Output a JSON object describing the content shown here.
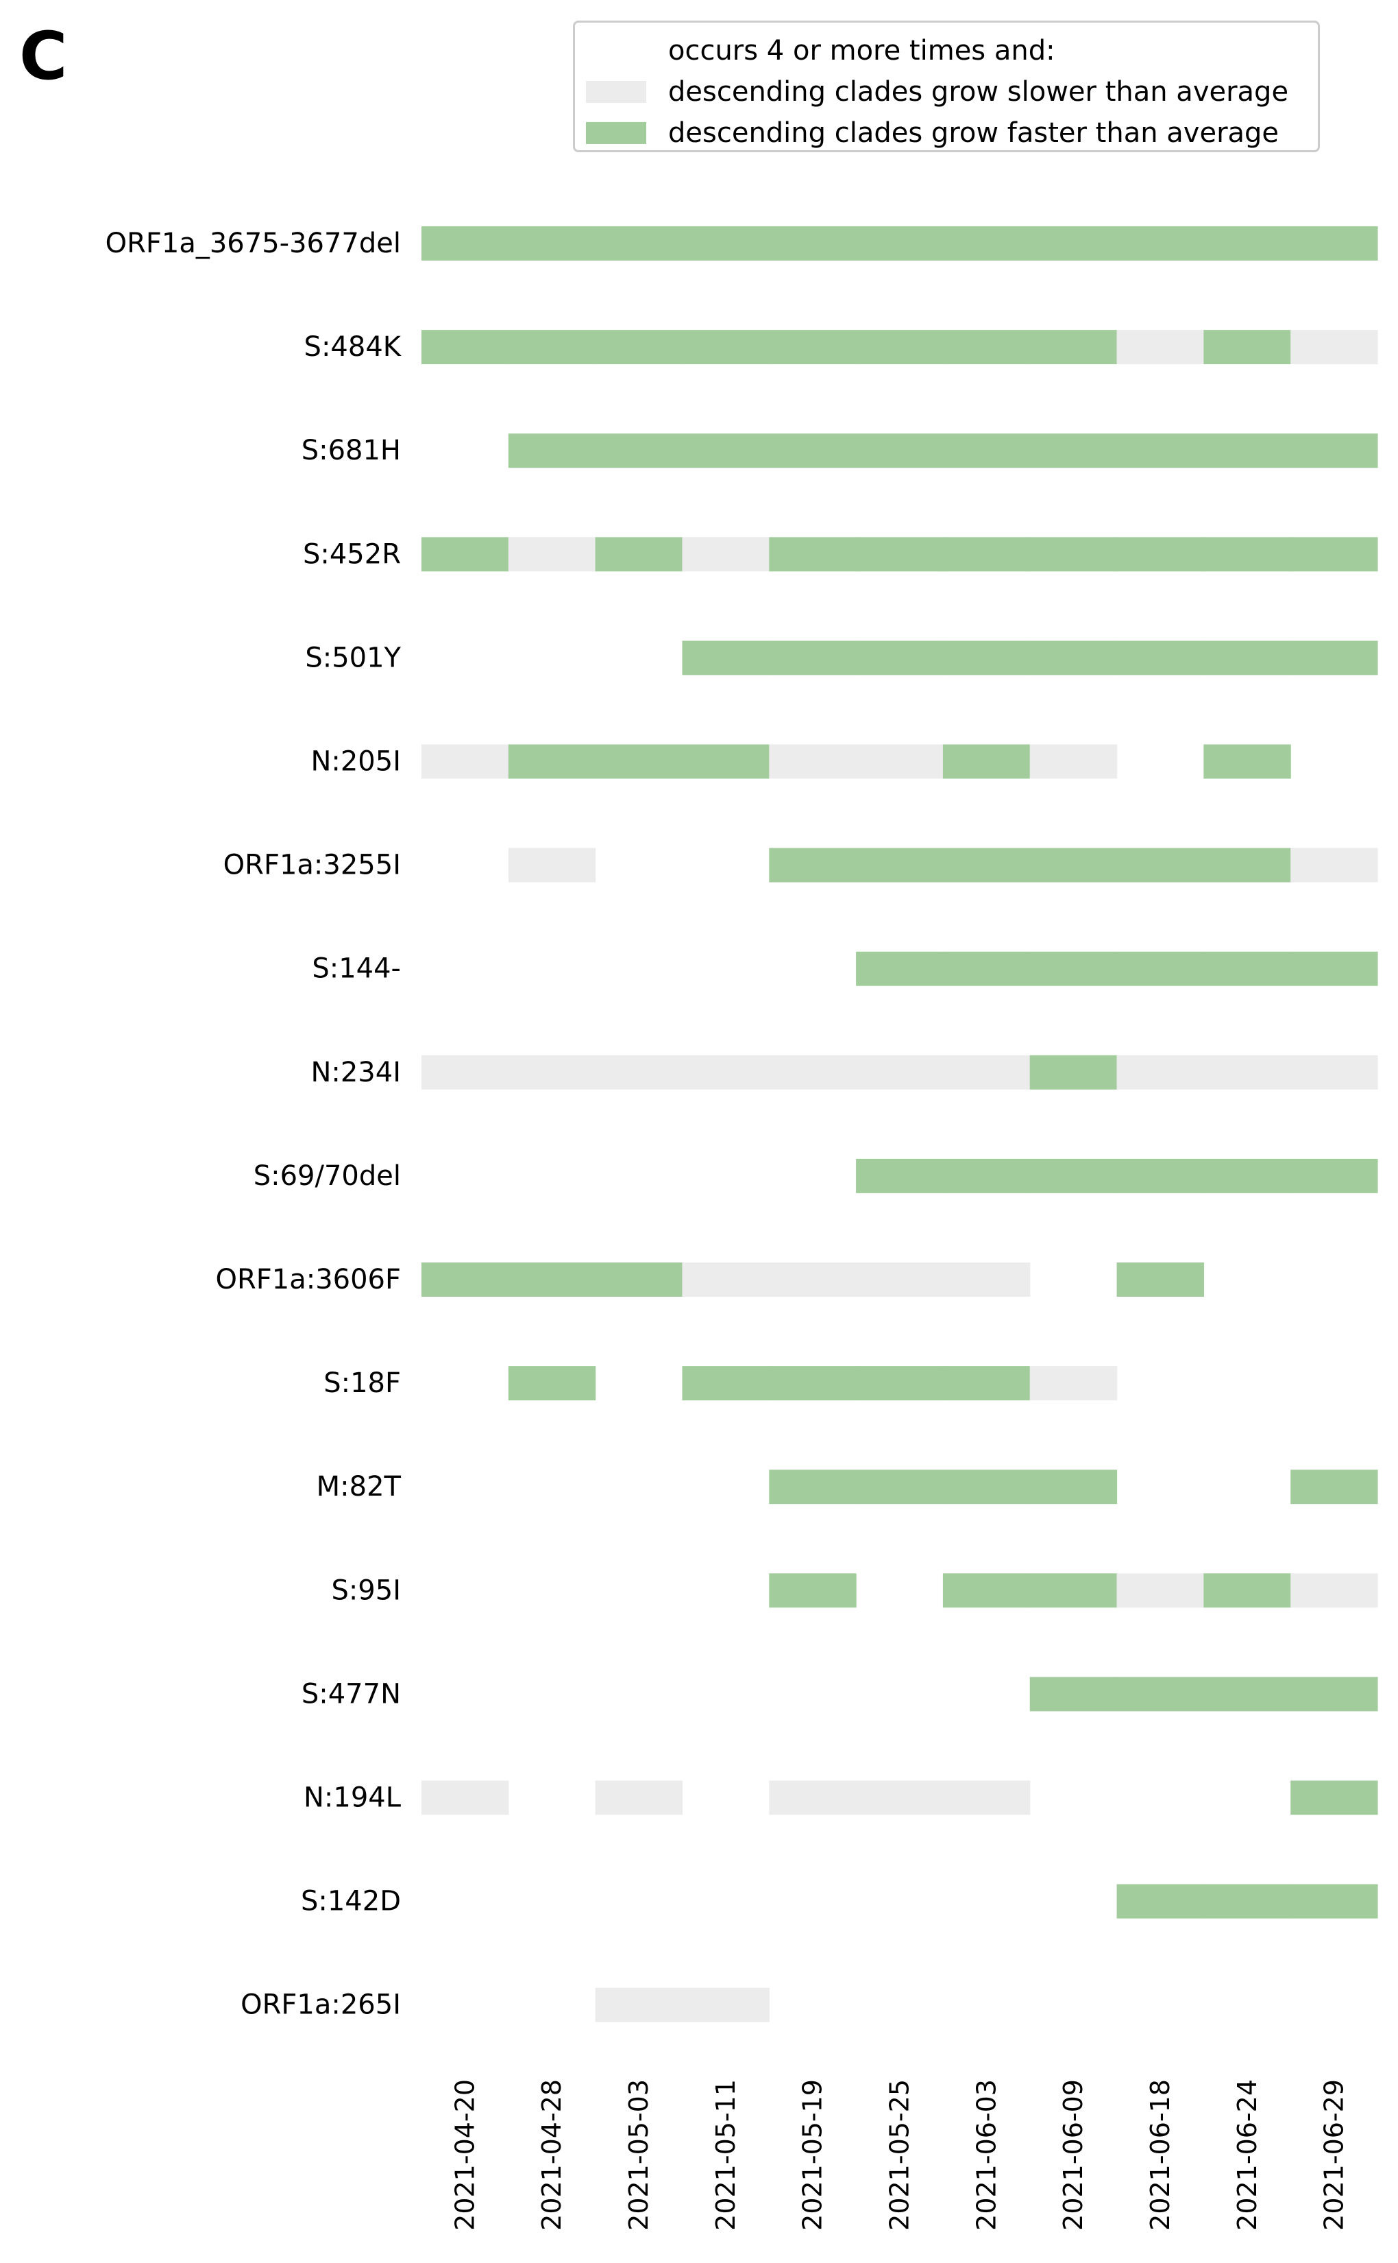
{
  "panel_label": "C",
  "legend": {
    "title": "occurs 4 or more times and:",
    "items": [
      {
        "label": "descending clades grow slower than average",
        "color": "#ececec"
      },
      {
        "label": "descending clades grow faster than average",
        "color": "#a3cc9d"
      }
    ]
  },
  "chart_data": {
    "type": "bar",
    "orientation": "horizontal-timeline",
    "title": "",
    "xlabel": "",
    "ylabel": "",
    "dates": [
      "2021-04-20",
      "2021-04-28",
      "2021-05-03",
      "2021-05-11",
      "2021-05-19",
      "2021-05-25",
      "2021-06-03",
      "2021-06-09",
      "2021-06-18",
      "2021-06-24",
      "2021-06-29"
    ],
    "colors": {
      "slower": "#ececec",
      "faster": "#a3cc9d"
    },
    "mutations": [
      {
        "name": "ORF1a_3675-3677del",
        "segments": [
          "F",
          "F",
          "F",
          "F",
          "F",
          "F",
          "F",
          "F",
          "F",
          "F",
          "F"
        ]
      },
      {
        "name": "S:484K",
        "segments": [
          "F",
          "F",
          "F",
          "F",
          "F",
          "F",
          "F",
          "F",
          "S",
          "F",
          "S"
        ]
      },
      {
        "name": "S:681H",
        "segments": [
          "",
          "F",
          "F",
          "F",
          "F",
          "F",
          "F",
          "F",
          "F",
          "F",
          "F"
        ]
      },
      {
        "name": "S:452R",
        "segments": [
          "F",
          "S",
          "F",
          "S",
          "F",
          "F",
          "F",
          "F",
          "F",
          "F",
          "F"
        ]
      },
      {
        "name": "S:501Y",
        "segments": [
          "",
          "",
          "",
          "F",
          "F",
          "F",
          "F",
          "F",
          "F",
          "F",
          "F"
        ]
      },
      {
        "name": "N:205I",
        "segments": [
          "S",
          "F",
          "F",
          "F",
          "S",
          "S",
          "F",
          "S",
          "",
          "F",
          ""
        ]
      },
      {
        "name": "ORF1a:3255I",
        "segments": [
          "",
          "S",
          "",
          "",
          "F",
          "F",
          "F",
          "F",
          "F",
          "F",
          "S"
        ]
      },
      {
        "name": "S:144-",
        "segments": [
          "",
          "",
          "",
          "",
          "",
          "F",
          "F",
          "F",
          "F",
          "F",
          "F"
        ]
      },
      {
        "name": "N:234I",
        "segments": [
          "S",
          "S",
          "S",
          "S",
          "S",
          "S",
          "S",
          "F",
          "S",
          "S",
          "S"
        ]
      },
      {
        "name": "S:69/70del",
        "segments": [
          "",
          "",
          "",
          "",
          "",
          "F",
          "F",
          "F",
          "F",
          "F",
          "F"
        ]
      },
      {
        "name": "ORF1a:3606F",
        "segments": [
          "F",
          "F",
          "F",
          "S",
          "S",
          "S",
          "S",
          "",
          "F",
          "",
          ""
        ]
      },
      {
        "name": "S:18F",
        "segments": [
          "",
          "F",
          "",
          "F",
          "F",
          "F",
          "F",
          "S",
          "",
          "",
          ""
        ]
      },
      {
        "name": "M:82T",
        "segments": [
          "",
          "",
          "",
          "",
          "F",
          "F",
          "F",
          "F",
          "",
          "",
          "F"
        ]
      },
      {
        "name": "S:95I",
        "segments": [
          "",
          "",
          "",
          "",
          "F",
          "",
          "F",
          "F",
          "S",
          "F",
          "S"
        ]
      },
      {
        "name": "S:477N",
        "segments": [
          "",
          "",
          "",
          "",
          "",
          "",
          "",
          "F",
          "F",
          "F",
          "F"
        ]
      },
      {
        "name": "N:194L",
        "segments": [
          "S",
          "",
          "S",
          "",
          "S",
          "S",
          "S",
          "",
          "",
          "",
          "F"
        ]
      },
      {
        "name": "S:142D",
        "segments": [
          "",
          "",
          "",
          "",
          "",
          "",
          "",
          "",
          "F",
          "F",
          "F"
        ]
      },
      {
        "name": "ORF1a:265I",
        "segments": [
          "",
          "",
          "S",
          "S",
          "",
          "",
          "",
          "",
          "",
          "",
          ""
        ]
      }
    ]
  }
}
